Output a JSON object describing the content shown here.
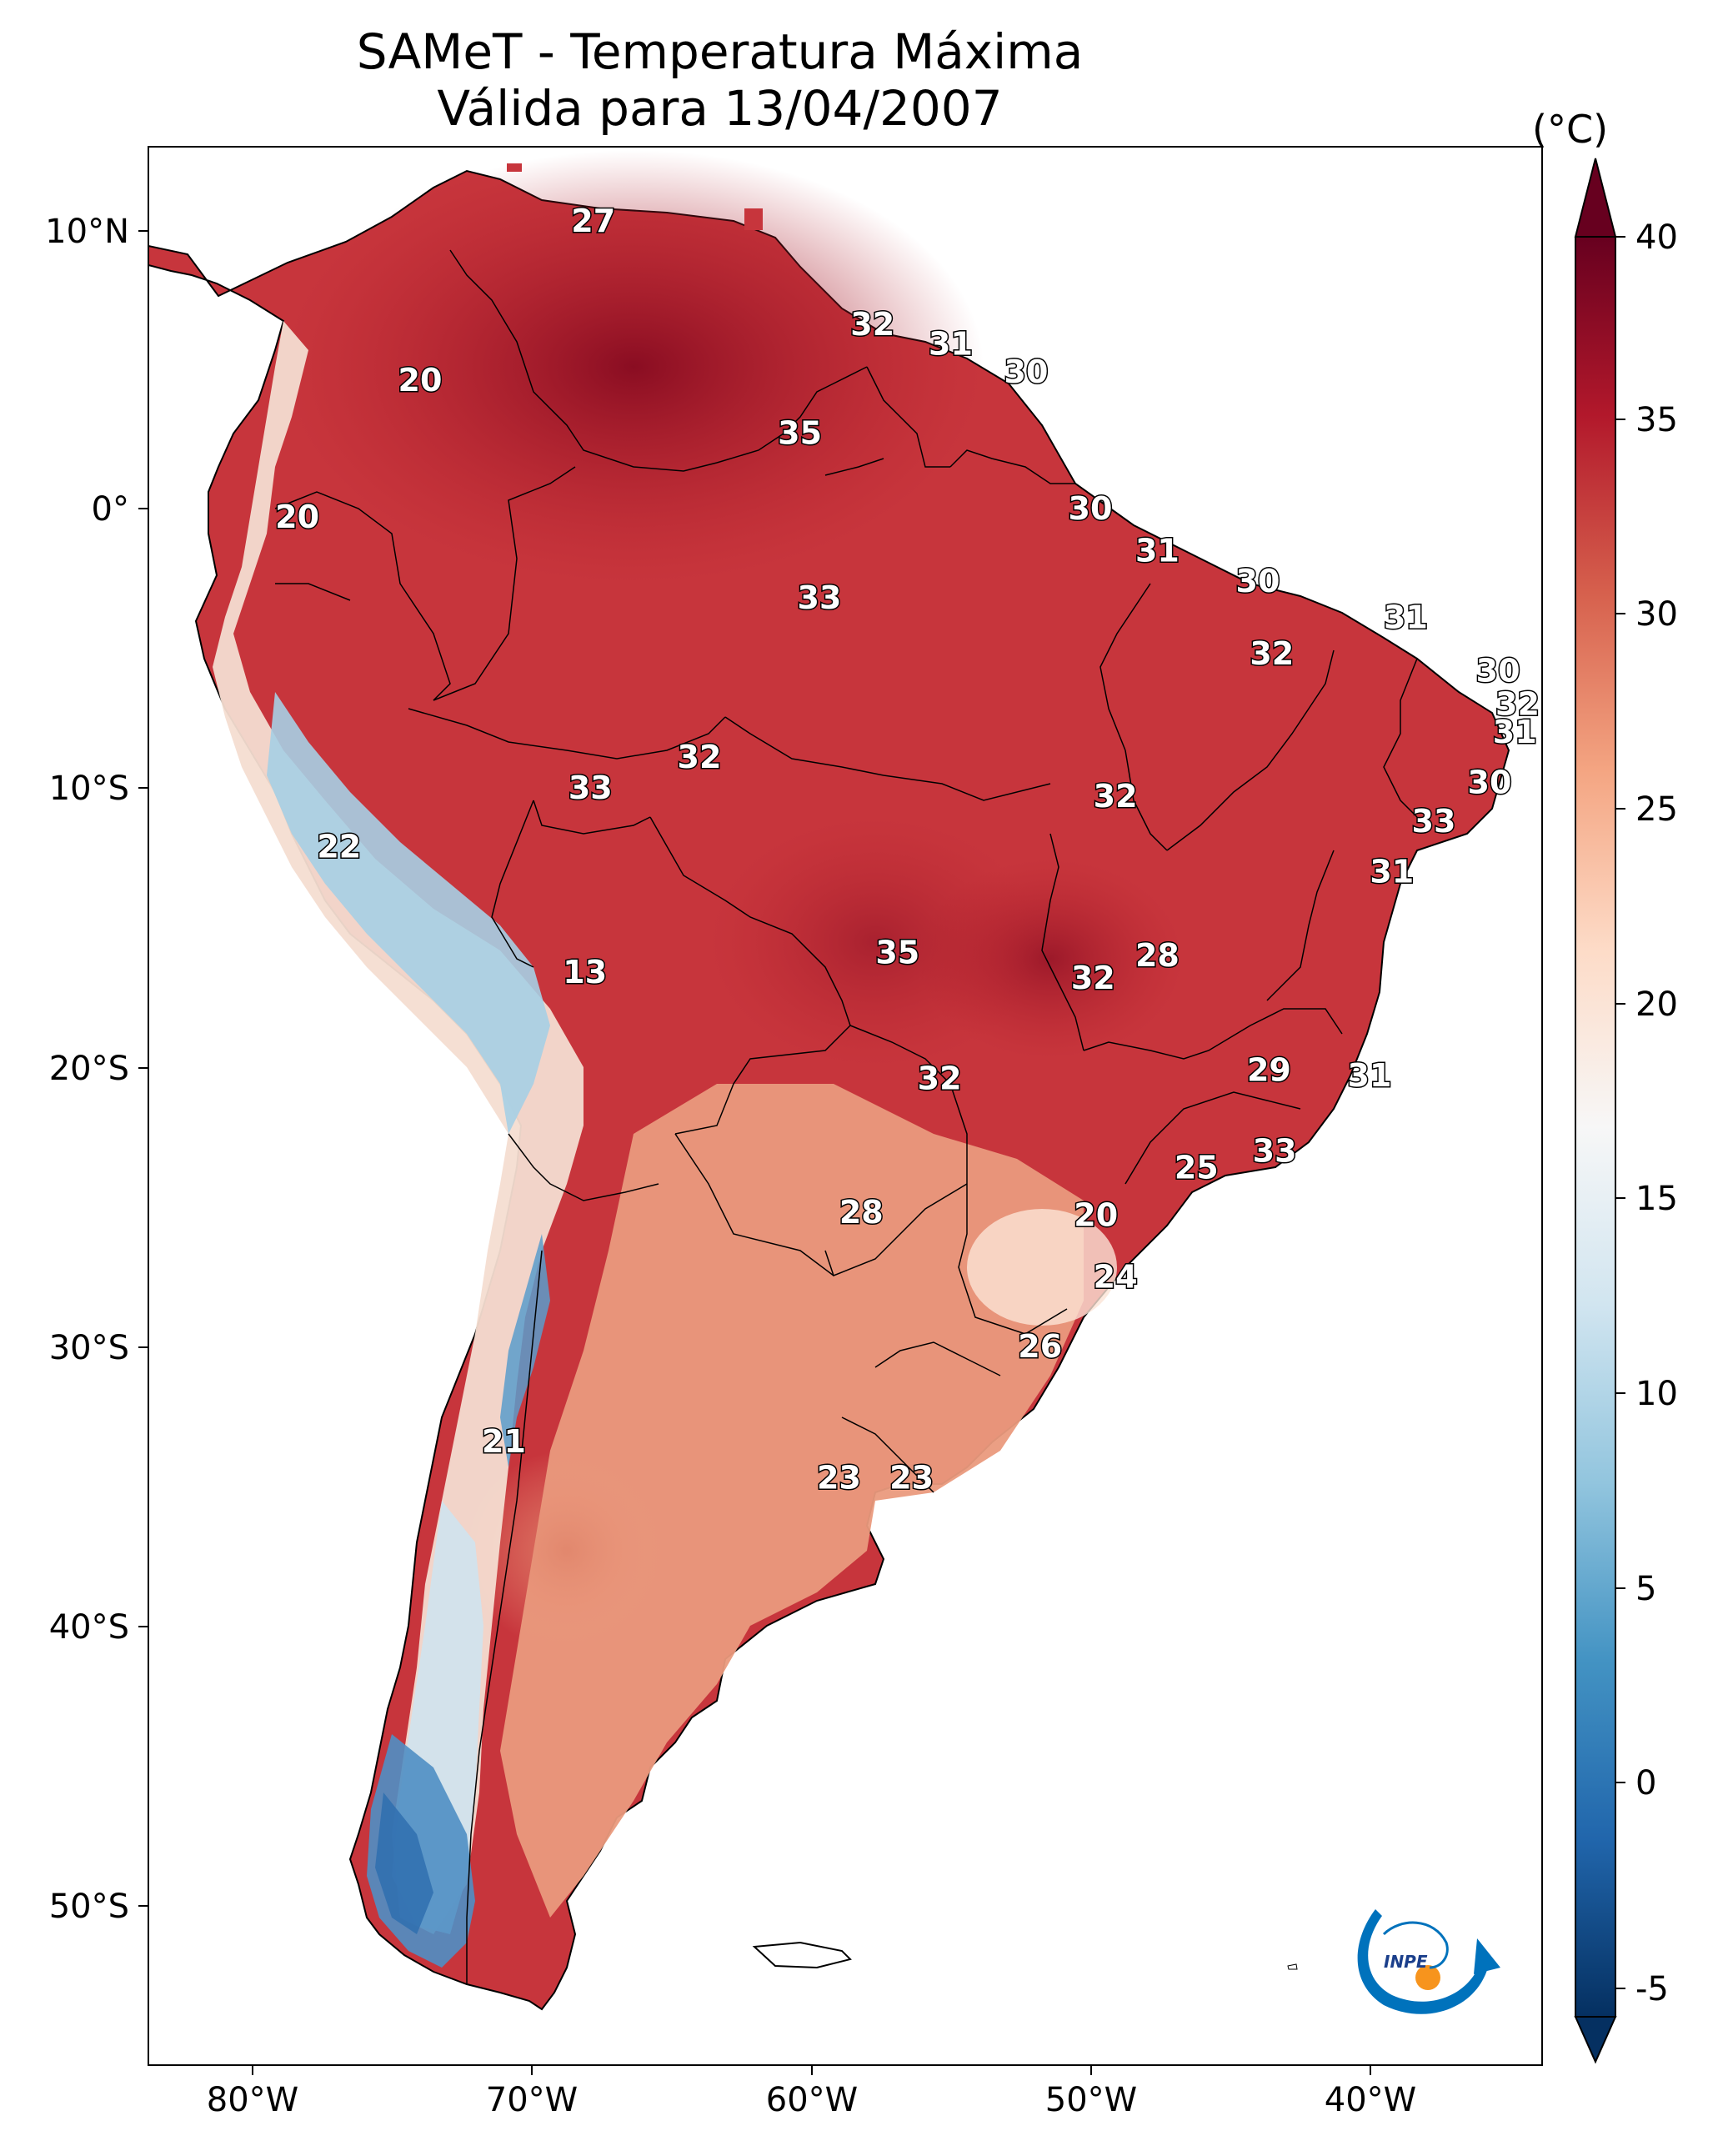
{
  "title_line1": "SAMeT - Temperatura Máxima",
  "title_line2": "Válida para 13/04/2007",
  "colorbar": {
    "unit": "(°C)",
    "ticks": [
      "40",
      "35",
      "30",
      "25",
      "20",
      "15",
      "10",
      "5",
      "0",
      "-5"
    ],
    "range": [
      -5,
      40
    ],
    "colors": [
      "#053061",
      "#2166ac",
      "#4393c3",
      "#92c5de",
      "#d1e5f0",
      "#f7f7f7",
      "#fddbc7",
      "#f4a582",
      "#d6604d",
      "#b2182b",
      "#67001f"
    ]
  },
  "axes": {
    "lat_labels": [
      "10°N",
      "0°",
      "10°S",
      "20°S",
      "30°S",
      "40°S",
      "50°S"
    ],
    "lon_labels": [
      "80°W",
      "70°W",
      "60°W",
      "50°W",
      "40°W"
    ]
  },
  "logo": {
    "text": "INPE",
    "accent": "#f7941d",
    "primary": "#0072bc"
  },
  "map_labels": [
    {
      "t": "27",
      "lon": -67.8,
      "lat": 10.3
    },
    {
      "t": "32",
      "lon": -57.8,
      "lat": 6.6
    },
    {
      "t": "31",
      "lon": -55.0,
      "lat": 5.9
    },
    {
      "t": "30",
      "lon": -52.3,
      "lat": 4.9
    },
    {
      "t": "20",
      "lon": -74.0,
      "lat": 4.6
    },
    {
      "t": "35",
      "lon": -60.4,
      "lat": 2.7
    },
    {
      "t": "20",
      "lon": -78.4,
      "lat": -0.3
    },
    {
      "t": "30",
      "lon": -50.0,
      "lat": 0.0
    },
    {
      "t": "31",
      "lon": -47.6,
      "lat": -1.5
    },
    {
      "t": "30",
      "lon": -44.0,
      "lat": -2.6
    },
    {
      "t": "33",
      "lon": -59.7,
      "lat": -3.2
    },
    {
      "t": "31",
      "lon": -38.7,
      "lat": -3.9
    },
    {
      "t": "32",
      "lon": -43.5,
      "lat": -5.2
    },
    {
      "t": "30",
      "lon": -35.4,
      "lat": -5.8
    },
    {
      "t": "32",
      "lon": -34.7,
      "lat": -7.0
    },
    {
      "t": "31",
      "lon": -34.8,
      "lat": -8.0
    },
    {
      "t": "32",
      "lon": -64.0,
      "lat": -8.9
    },
    {
      "t": "33",
      "lon": -67.9,
      "lat": -10.0
    },
    {
      "t": "30",
      "lon": -35.7,
      "lat": -9.8
    },
    {
      "t": "32",
      "lon": -49.1,
      "lat": -10.3
    },
    {
      "t": "33",
      "lon": -37.7,
      "lat": -11.2
    },
    {
      "t": "22",
      "lon": -76.9,
      "lat": -12.1
    },
    {
      "t": "31",
      "lon": -39.2,
      "lat": -13.0
    },
    {
      "t": "28",
      "lon": -47.6,
      "lat": -16.0
    },
    {
      "t": "35",
      "lon": -56.9,
      "lat": -15.9
    },
    {
      "t": "13",
      "lon": -68.1,
      "lat": -16.6
    },
    {
      "t": "32",
      "lon": -49.9,
      "lat": -16.8
    },
    {
      "t": "29",
      "lon": -43.6,
      "lat": -20.1
    },
    {
      "t": "31",
      "lon": -40.0,
      "lat": -20.3
    },
    {
      "t": "32",
      "lon": -55.4,
      "lat": -20.4
    },
    {
      "t": "33",
      "lon": -43.4,
      "lat": -23.0
    },
    {
      "t": "25",
      "lon": -46.2,
      "lat": -23.6
    },
    {
      "t": "20",
      "lon": -49.8,
      "lat": -25.3
    },
    {
      "t": "28",
      "lon": -58.2,
      "lat": -25.2
    },
    {
      "t": "24",
      "lon": -49.1,
      "lat": -27.5
    },
    {
      "t": "26",
      "lon": -51.8,
      "lat": -30.0
    },
    {
      "t": "21",
      "lon": -71.0,
      "lat": -33.4
    },
    {
      "t": "23",
      "lon": -59.0,
      "lat": -34.7
    },
    {
      "t": "23",
      "lon": -56.4,
      "lat": -34.7
    }
  ]
}
